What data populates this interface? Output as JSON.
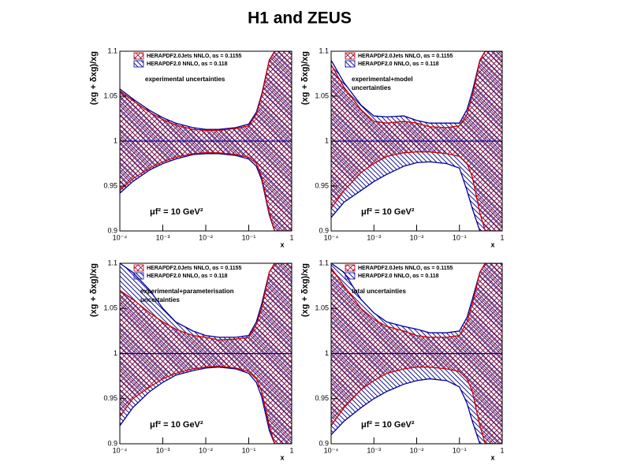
{
  "title": "H1 and ZEUS",
  "chart_data": [
    {
      "type": "band",
      "xscale": "log",
      "xlabel": "x",
      "ylabel": "(xg + δxg)/xg",
      "annotation": [
        "experimental uncertainties"
      ],
      "scale_label": "μf² = 10 GeV²",
      "central": 1,
      "x": [
        0.0001,
        0.0002,
        0.0005,
        0.001,
        0.002,
        0.005,
        0.01,
        0.02,
        0.05,
        0.1,
        0.15,
        0.2,
        0.3,
        0.4,
        0.6,
        1
      ],
      "series": [
        {
          "name": "HERAPDF2.0Jets NNLO, αs = 0.1155",
          "color": "#cc0000",
          "upper": [
            1.056,
            1.045,
            1.032,
            1.024,
            1.018,
            1.013,
            1.012,
            1.012,
            1.014,
            1.017,
            1.03,
            1.05,
            1.09,
            1.1,
            1.1,
            1.1
          ],
          "lower": [
            0.945,
            0.958,
            0.97,
            0.977,
            0.982,
            0.986,
            0.987,
            0.987,
            0.985,
            0.982,
            0.975,
            0.96,
            0.92,
            0.9,
            0.9,
            0.9
          ]
        },
        {
          "name": "HERAPDF2.0 NNLO, αs = 0.118",
          "color": "#000099",
          "upper": [
            1.058,
            1.047,
            1.034,
            1.026,
            1.02,
            1.015,
            1.013,
            1.013,
            1.015,
            1.019,
            1.032,
            1.052,
            1.09,
            1.1,
            1.1,
            1.1
          ],
          "lower": [
            0.942,
            0.955,
            0.968,
            0.975,
            0.98,
            0.985,
            0.986,
            0.986,
            0.984,
            0.98,
            0.972,
            0.957,
            0.918,
            0.9,
            0.9,
            0.9
          ]
        }
      ],
      "xlim": [
        0.0001,
        1
      ],
      "ylim": [
        0.9,
        1.1
      ],
      "xticks": [
        {
          "value": 0.0001,
          "label": "10⁻⁴"
        },
        {
          "value": 0.001,
          "label": "10⁻³"
        },
        {
          "value": 0.01,
          "label": "10⁻²"
        },
        {
          "value": 0.1,
          "label": "10⁻¹"
        },
        1
      ],
      "yticks": [
        0.9,
        0.95,
        1,
        1.05,
        1.1
      ]
    },
    {
      "type": "band",
      "xscale": "log",
      "xlabel": "x",
      "ylabel": "(xg + δxg)/xg",
      "annotation": [
        "experimental+model",
        "uncertainties"
      ],
      "scale_label": "μf² = 10 GeV²",
      "central": 1,
      "x": [
        0.0001,
        0.0002,
        0.0005,
        0.001,
        0.002,
        0.005,
        0.01,
        0.02,
        0.05,
        0.1,
        0.15,
        0.2,
        0.3,
        0.4,
        0.6,
        1
      ],
      "series": [
        {
          "name": "HERAPDF2.0Jets NNLO, αs = 0.1155",
          "color": "#cc0000",
          "upper": [
            1.085,
            1.06,
            1.035,
            1.022,
            1.02,
            1.022,
            1.02,
            1.016,
            1.015,
            1.017,
            1.03,
            1.05,
            1.09,
            1.1,
            1.1,
            1.1
          ],
          "lower": [
            0.925,
            0.945,
            0.965,
            0.975,
            0.983,
            0.987,
            0.988,
            0.988,
            0.986,
            0.983,
            0.975,
            0.96,
            0.92,
            0.9,
            0.9,
            0.9
          ]
        },
        {
          "name": "HERAPDF2.0 NNLO, αs = 0.118",
          "color": "#000099",
          "upper": [
            1.09,
            1.065,
            1.04,
            1.028,
            1.027,
            1.028,
            1.023,
            1.02,
            1.02,
            1.02,
            1.035,
            1.055,
            1.09,
            1.1,
            1.1,
            1.1
          ],
          "lower": [
            0.915,
            0.932,
            0.945,
            0.955,
            0.963,
            0.972,
            0.976,
            0.977,
            0.975,
            0.97,
            0.945,
            0.925,
            0.9,
            0.9,
            0.9,
            0.9
          ]
        }
      ],
      "xlim": [
        0.0001,
        1
      ],
      "ylim": [
        0.9,
        1.1
      ],
      "xticks": [
        {
          "value": 0.0001,
          "label": "10⁻⁴"
        },
        {
          "value": 0.001,
          "label": "10⁻³"
        },
        {
          "value": 0.01,
          "label": "10⁻²"
        },
        {
          "value": 0.1,
          "label": "10⁻¹"
        },
        1
      ],
      "yticks": [
        0.9,
        0.95,
        1,
        1.05,
        1.1
      ]
    },
    {
      "type": "band",
      "xscale": "log",
      "xlabel": "x",
      "ylabel": "(xg + δxg)/xg",
      "annotation": [
        "experimental+parameterisation",
        "uncertainties"
      ],
      "scale_label": "μf² = 10 GeV²",
      "central": 1,
      "x": [
        0.0001,
        0.0002,
        0.0005,
        0.001,
        0.002,
        0.005,
        0.01,
        0.02,
        0.05,
        0.1,
        0.15,
        0.2,
        0.3,
        0.4,
        0.6,
        1
      ],
      "series": [
        {
          "name": "HERAPDF2.0Jets NNLO, αs = 0.1155",
          "color": "#cc0000",
          "upper": [
            1.07,
            1.06,
            1.045,
            1.035,
            1.027,
            1.02,
            1.018,
            1.015,
            1.016,
            1.018,
            1.032,
            1.05,
            1.09,
            1.1,
            1.1,
            1.1
          ],
          "lower": [
            0.93,
            0.95,
            0.963,
            0.972,
            0.978,
            0.983,
            0.985,
            0.986,
            0.984,
            0.98,
            0.972,
            0.958,
            0.92,
            0.9,
            0.9,
            0.9
          ]
        },
        {
          "name": "HERAPDF2.0 NNLO, αs = 0.118",
          "color": "#000099",
          "upper": [
            1.1,
            1.09,
            1.07,
            1.05,
            1.035,
            1.025,
            1.02,
            1.018,
            1.018,
            1.02,
            1.035,
            1.055,
            1.09,
            1.1,
            1.1,
            1.1
          ],
          "lower": [
            0.92,
            0.94,
            0.958,
            0.968,
            0.976,
            0.981,
            0.984,
            0.985,
            0.983,
            0.978,
            0.968,
            0.952,
            0.915,
            0.9,
            0.9,
            0.9
          ]
        }
      ],
      "xlim": [
        0.0001,
        1
      ],
      "ylim": [
        0.9,
        1.1
      ],
      "xticks": [
        {
          "value": 0.0001,
          "label": "10⁻⁴"
        },
        {
          "value": 0.001,
          "label": "10⁻³"
        },
        {
          "value": 0.01,
          "label": "10⁻²"
        },
        {
          "value": 0.1,
          "label": "10⁻¹"
        },
        1
      ],
      "yticks": [
        0.9,
        0.95,
        1,
        1.05,
        1.1
      ]
    },
    {
      "type": "band",
      "xscale": "log",
      "xlabel": "x",
      "ylabel": "(xg + δxg)/xg",
      "annotation": [
        "total uncertainties"
      ],
      "scale_label": "μf² = 10 GeV²",
      "central": 1,
      "x": [
        0.0001,
        0.0002,
        0.0005,
        0.001,
        0.002,
        0.005,
        0.01,
        0.02,
        0.05,
        0.1,
        0.15,
        0.2,
        0.3,
        0.4,
        0.6,
        1
      ],
      "series": [
        {
          "name": "HERAPDF2.0Jets NNLO, αs = 0.1155",
          "color": "#cc0000",
          "upper": [
            1.095,
            1.075,
            1.05,
            1.038,
            1.03,
            1.025,
            1.02,
            1.018,
            1.018,
            1.02,
            1.035,
            1.055,
            1.09,
            1.1,
            1.1,
            1.1
          ],
          "lower": [
            0.92,
            0.94,
            0.96,
            0.97,
            0.978,
            0.983,
            0.985,
            0.985,
            0.983,
            0.98,
            0.972,
            0.958,
            0.92,
            0.9,
            0.9,
            0.9
          ]
        },
        {
          "name": "HERAPDF2.0 NNLO, αs = 0.118",
          "color": "#000099",
          "upper": [
            1.1,
            1.09,
            1.06,
            1.045,
            1.035,
            1.03,
            1.027,
            1.023,
            1.023,
            1.025,
            1.04,
            1.06,
            1.09,
            1.1,
            1.1,
            1.1
          ],
          "lower": [
            0.91,
            0.925,
            0.94,
            0.95,
            0.958,
            0.966,
            0.97,
            0.972,
            0.97,
            0.963,
            0.945,
            0.925,
            0.9,
            0.9,
            0.9,
            0.9
          ]
        }
      ],
      "xlim": [
        0.0001,
        1
      ],
      "ylim": [
        0.9,
        1.1
      ],
      "xticks": [
        {
          "value": 0.0001,
          "label": "10⁻⁴"
        },
        {
          "value": 0.001,
          "label": "10⁻³"
        },
        {
          "value": 0.01,
          "label": "10⁻²"
        },
        {
          "value": 0.1,
          "label": "10⁻¹"
        },
        1
      ],
      "yticks": [
        0.9,
        0.95,
        1,
        1.05,
        1.1
      ]
    }
  ]
}
